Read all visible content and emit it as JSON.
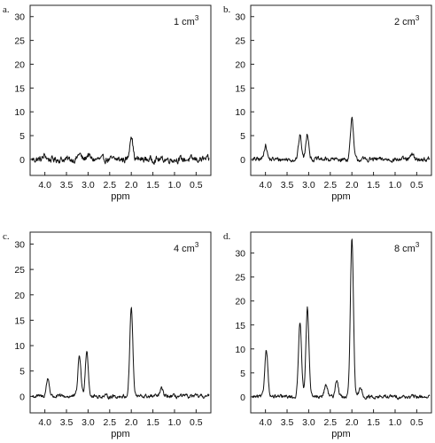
{
  "chart_data": [
    {
      "type": "line",
      "panel_label": "a.",
      "title": "1 cm",
      "title_sup": "3",
      "xlabel": "ppm",
      "xlim": [
        4.3,
        0.2
      ],
      "x_reversed": true,
      "xticks": [
        "4.0",
        "3.5",
        "3.0",
        "2.5",
        "2.0",
        "1.5",
        "1.0",
        "0.5"
      ],
      "ylim": [
        -1.5,
        32
      ],
      "yticks": [
        "0",
        "5",
        "10",
        "15",
        "20",
        "25",
        "30"
      ],
      "baseline_noise": 0.7,
      "peaks": [
        {
          "ppm": 4.0,
          "height": 0.8
        },
        {
          "ppm": 3.2,
          "height": 1.2
        },
        {
          "ppm": 3.0,
          "height": 1.0
        },
        {
          "ppm": 2.0,
          "height": 5.3
        }
      ]
    },
    {
      "type": "line",
      "panel_label": "b.",
      "title": "2 cm",
      "title_sup": "3",
      "xlabel": "ppm",
      "xlim": [
        4.3,
        0.2
      ],
      "x_reversed": true,
      "xticks": [
        "4.0",
        "3.5",
        "3.0",
        "2.5",
        "2.0",
        "1.5",
        "1.0",
        "0.5"
      ],
      "ylim": [
        -1.5,
        32
      ],
      "yticks": [
        "0",
        "5",
        "10",
        "15",
        "20",
        "25",
        "30"
      ],
      "baseline_noise": 0.5,
      "peaks": [
        {
          "ppm": 4.0,
          "height": 3.0
        },
        {
          "ppm": 3.2,
          "height": 5.0
        },
        {
          "ppm": 3.03,
          "height": 5.5
        },
        {
          "ppm": 2.0,
          "height": 8.4
        },
        {
          "ppm": 0.6,
          "height": 1.0
        }
      ]
    },
    {
      "type": "line",
      "panel_label": "c.",
      "title": "4 cm",
      "title_sup": "3",
      "xlabel": "ppm",
      "xlim": [
        4.3,
        0.2
      ],
      "x_reversed": true,
      "xticks": [
        "4.0",
        "3.5",
        "3.0",
        "2.5",
        "2.0",
        "1.5",
        "1.0",
        "0.5"
      ],
      "ylim": [
        -1.5,
        32
      ],
      "yticks": [
        "0",
        "5",
        "10",
        "15",
        "20",
        "25",
        "30"
      ],
      "baseline_noise": 0.4,
      "peaks": [
        {
          "ppm": 3.93,
          "height": 3.5
        },
        {
          "ppm": 3.2,
          "height": 8.0
        },
        {
          "ppm": 3.03,
          "height": 9.0
        },
        {
          "ppm": 2.0,
          "height": 17.5
        },
        {
          "ppm": 1.3,
          "height": 1.5
        }
      ]
    },
    {
      "type": "line",
      "panel_label": "d.",
      "title": "8 cm",
      "title_sup": "3",
      "xlabel": "ppm",
      "xlim": [
        4.3,
        0.2
      ],
      "x_reversed": true,
      "xticks": [
        "4.0",
        "3.5",
        "3.0",
        "2.5",
        "2.0",
        "1.5",
        "1.0",
        "0.5"
      ],
      "ylim": [
        -1.5,
        34
      ],
      "yticks": [
        "0",
        "5",
        "10",
        "15",
        "20",
        "25",
        "30"
      ],
      "baseline_noise": 0.4,
      "peaks": [
        {
          "ppm": 3.98,
          "height": 10.0
        },
        {
          "ppm": 3.2,
          "height": 15.8
        },
        {
          "ppm": 3.03,
          "height": 18.5
        },
        {
          "ppm": 2.6,
          "height": 2.5
        },
        {
          "ppm": 2.35,
          "height": 3.5
        },
        {
          "ppm": 2.0,
          "height": 33.0
        },
        {
          "ppm": 1.8,
          "height": 2.0
        }
      ]
    }
  ],
  "colors": {
    "line": "#111111",
    "axis": "#222222",
    "background": "#ffffff"
  }
}
